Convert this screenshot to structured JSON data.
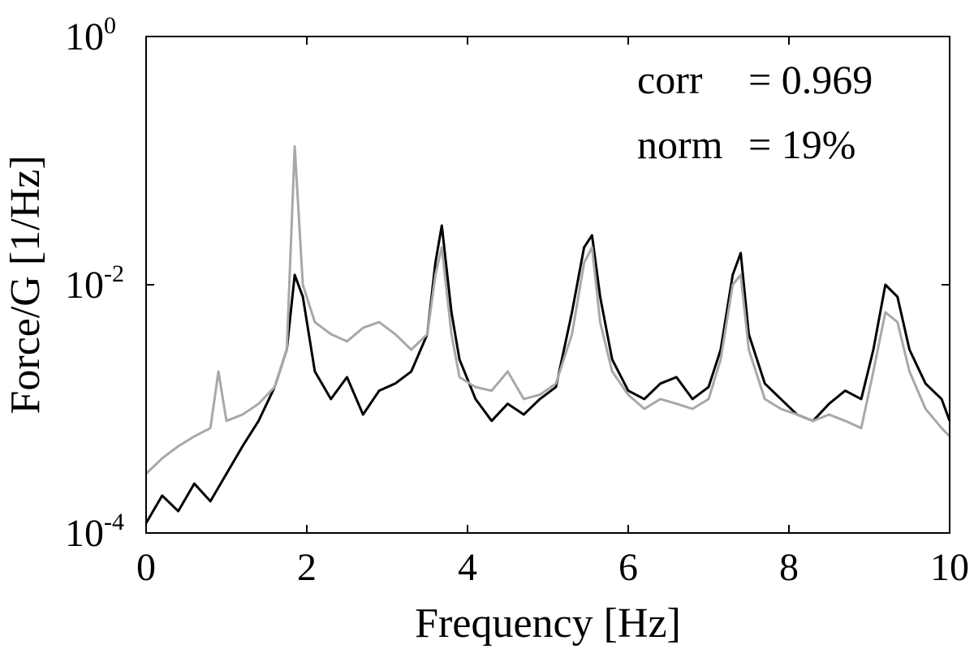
{
  "chart_data": {
    "type": "line",
    "xlabel": "Frequency [Hz]",
    "ylabel": "Force/G [1/Hz]",
    "xlim": [
      0,
      10
    ],
    "ylim": [
      0.0001,
      1
    ],
    "yscale": "log",
    "grid": false,
    "x_ticks": [
      0,
      2,
      4,
      6,
      8,
      10
    ],
    "x_tick_labels": [
      "0",
      "2",
      "4",
      "6",
      "8",
      "10"
    ],
    "y_ticks": [
      0.0001,
      0.01,
      1
    ],
    "y_tick_labels": [
      {
        "base": "10",
        "exp": "-4"
      },
      {
        "base": "10",
        "exp": "-2"
      },
      {
        "base": "10",
        "exp": "0"
      }
    ],
    "annotations": [
      {
        "label": "corr",
        "eq": "= 0.969"
      },
      {
        "label": "norm",
        "eq": "= 19%"
      }
    ],
    "series": [
      {
        "color": "#000000",
        "x": [
          0.0,
          0.2,
          0.4,
          0.6,
          0.8,
          1.0,
          1.2,
          1.4,
          1.6,
          1.75,
          1.85,
          1.95,
          2.1,
          2.3,
          2.5,
          2.7,
          2.9,
          3.1,
          3.3,
          3.5,
          3.6,
          3.68,
          3.8,
          3.9,
          4.1,
          4.3,
          4.5,
          4.7,
          4.9,
          5.1,
          5.3,
          5.45,
          5.55,
          5.65,
          5.8,
          6.0,
          6.2,
          6.4,
          6.6,
          6.8,
          7.0,
          7.15,
          7.3,
          7.4,
          7.5,
          7.7,
          7.9,
          8.1,
          8.3,
          8.5,
          8.7,
          8.9,
          9.05,
          9.2,
          9.35,
          9.5,
          9.7,
          9.9,
          10.0
        ],
        "y": [
          0.00012,
          0.0002,
          0.00015,
          0.00025,
          0.00018,
          0.0003,
          0.0005,
          0.0008,
          0.0015,
          0.003,
          0.012,
          0.008,
          0.002,
          0.0012,
          0.0018,
          0.0009,
          0.0014,
          0.0016,
          0.002,
          0.004,
          0.015,
          0.03,
          0.006,
          0.0025,
          0.0012,
          0.0008,
          0.0011,
          0.0009,
          0.0012,
          0.0015,
          0.006,
          0.02,
          0.025,
          0.008,
          0.0025,
          0.0014,
          0.0012,
          0.0016,
          0.0018,
          0.0012,
          0.0015,
          0.003,
          0.012,
          0.018,
          0.004,
          0.0016,
          0.0012,
          0.0009,
          0.0008,
          0.0011,
          0.0014,
          0.0012,
          0.003,
          0.01,
          0.008,
          0.003,
          0.0016,
          0.0012,
          0.0008
        ]
      },
      {
        "color": "#a8a8a8",
        "x": [
          0.0,
          0.2,
          0.4,
          0.6,
          0.8,
          0.9,
          1.0,
          1.2,
          1.4,
          1.6,
          1.75,
          1.85,
          1.95,
          2.1,
          2.3,
          2.5,
          2.7,
          2.9,
          3.1,
          3.3,
          3.5,
          3.6,
          3.68,
          3.8,
          3.9,
          4.1,
          4.3,
          4.5,
          4.7,
          4.9,
          5.1,
          5.3,
          5.45,
          5.55,
          5.65,
          5.8,
          6.0,
          6.2,
          6.4,
          6.6,
          6.8,
          7.0,
          7.15,
          7.3,
          7.4,
          7.5,
          7.7,
          7.9,
          8.1,
          8.3,
          8.5,
          8.7,
          8.9,
          9.05,
          9.2,
          9.35,
          9.5,
          9.7,
          9.9,
          10.0
        ],
        "y": [
          0.0003,
          0.0004,
          0.0005,
          0.0006,
          0.0007,
          0.002,
          0.0008,
          0.0009,
          0.0011,
          0.0015,
          0.003,
          0.13,
          0.01,
          0.005,
          0.004,
          0.0035,
          0.0045,
          0.005,
          0.004,
          0.003,
          0.004,
          0.012,
          0.02,
          0.004,
          0.0018,
          0.0015,
          0.0014,
          0.002,
          0.0012,
          0.0013,
          0.0016,
          0.004,
          0.015,
          0.02,
          0.005,
          0.002,
          0.0013,
          0.001,
          0.0012,
          0.0011,
          0.001,
          0.0012,
          0.0025,
          0.01,
          0.012,
          0.003,
          0.0012,
          0.001,
          0.0009,
          0.0008,
          0.0009,
          0.0008,
          0.0007,
          0.002,
          0.006,
          0.005,
          0.002,
          0.001,
          0.0007,
          0.0006
        ]
      }
    ]
  }
}
